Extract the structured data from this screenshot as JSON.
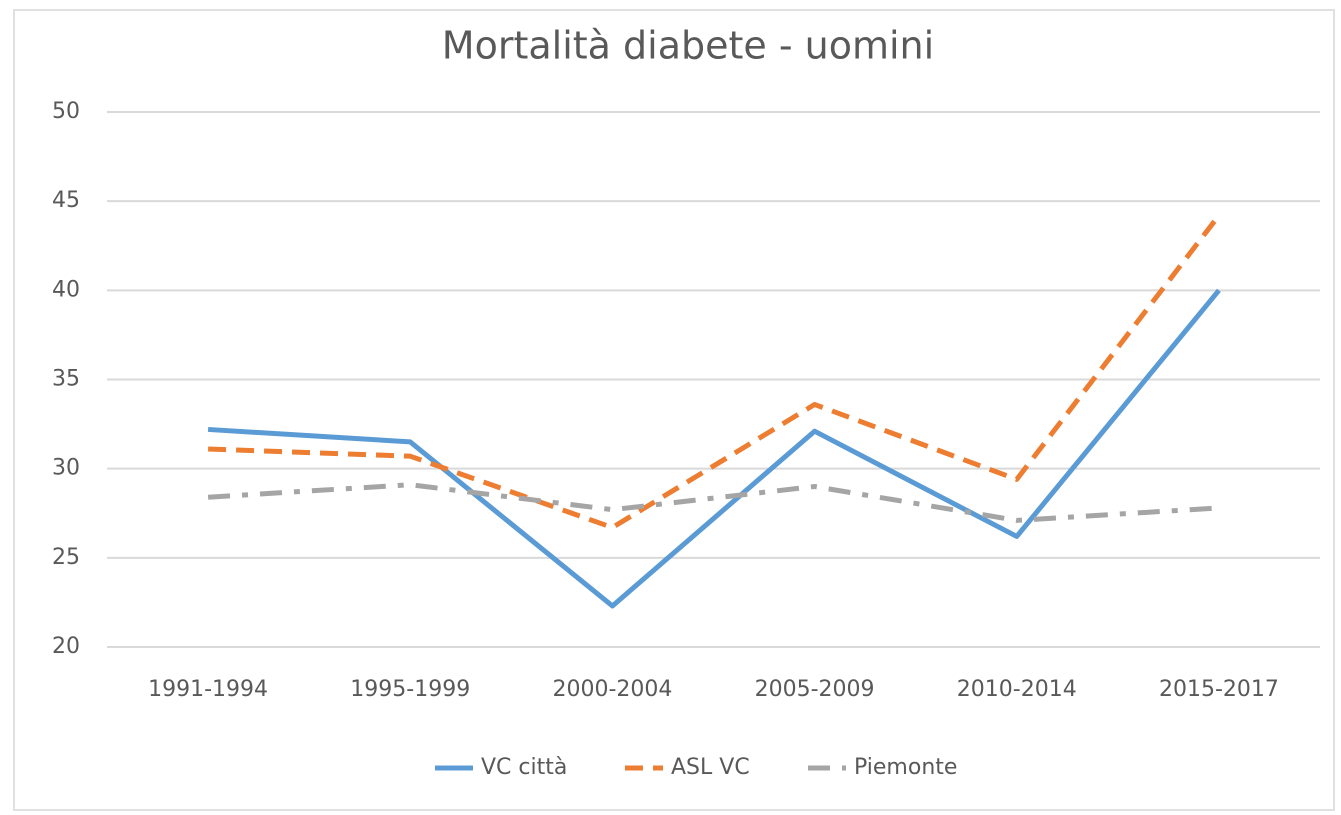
{
  "chart_data": {
    "type": "line",
    "title": "Mortalità diabete - uomini",
    "categories": [
      "1991-1994",
      "1995-1999",
      "2000-2004",
      "2005-2009",
      "2010-2014",
      "2015-2017"
    ],
    "series": [
      {
        "name": "VC città",
        "color": "#5b9bd5",
        "dash": "solid",
        "values": [
          32.2,
          31.5,
          22.3,
          32.1,
          26.2,
          40.0
        ]
      },
      {
        "name": "ASL VC",
        "color": "#ed7d31",
        "dash": "dash",
        "values": [
          31.1,
          30.7,
          26.7,
          33.6,
          29.4,
          44.2
        ]
      },
      {
        "name": "Piemonte",
        "color": "#a5a5a5",
        "dash": "dashdot",
        "values": [
          28.4,
          29.1,
          27.7,
          29.0,
          27.1,
          27.8
        ]
      }
    ],
    "ylim": [
      20,
      50
    ],
    "yticks": [
      20,
      25,
      30,
      35,
      40,
      45,
      50
    ],
    "grid": true,
    "legend": "bottom"
  }
}
